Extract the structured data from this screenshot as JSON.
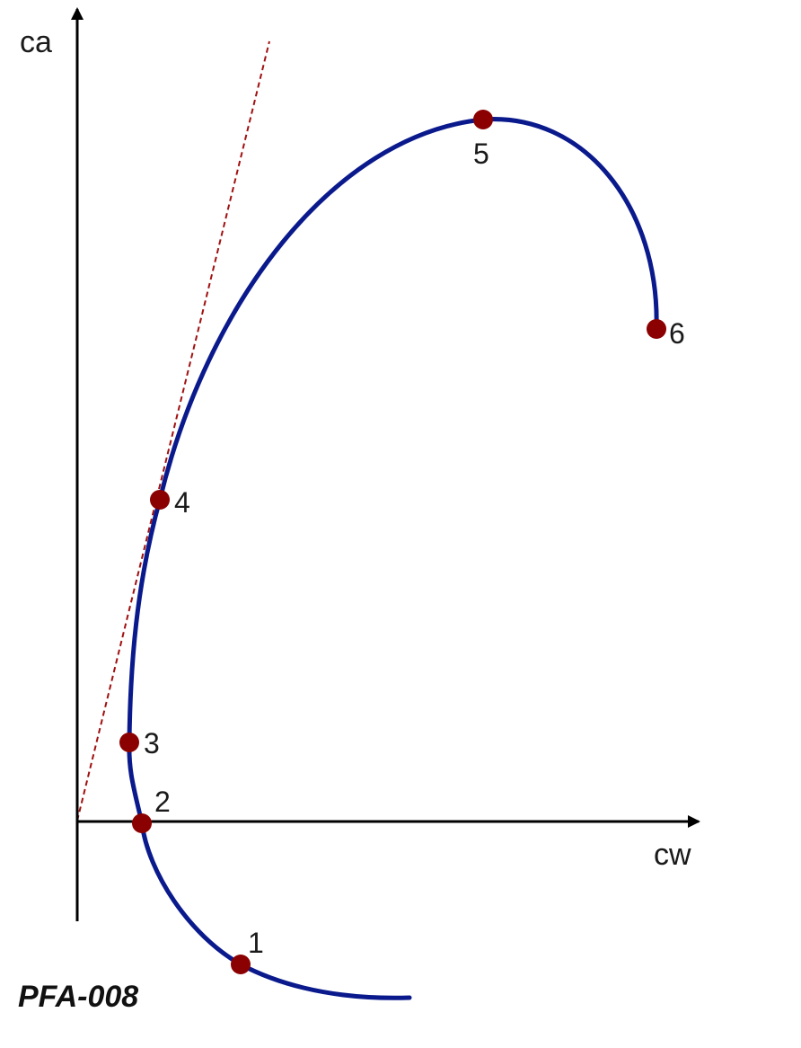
{
  "diagram": {
    "y_axis_label": "ca",
    "x_axis_label": "cw",
    "identifier": "PFA-008",
    "points": [
      {
        "label": "1"
      },
      {
        "label": "2"
      },
      {
        "label": "3"
      },
      {
        "label": "4"
      },
      {
        "label": "5"
      },
      {
        "label": "6"
      }
    ],
    "colors": {
      "curve": "#0a1a8c",
      "points": "#8b0000",
      "tangent": "#a01010",
      "axes": "#000000"
    }
  }
}
